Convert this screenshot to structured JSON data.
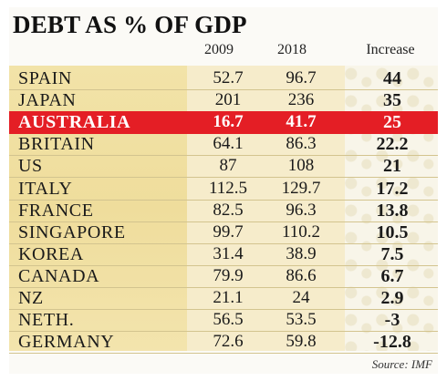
{
  "chart_data": {
    "type": "table",
    "title": "DEBT AS % OF GDP",
    "columns": [
      "2009",
      "2018",
      "Increase"
    ],
    "rows": [
      {
        "country": "SPAIN",
        "y2009": "52.7",
        "y2018": "96.7",
        "increase": "44"
      },
      {
        "country": "JAPAN",
        "y2009": "201",
        "y2018": "236",
        "increase": "35"
      },
      {
        "country": "AUSTRALIA",
        "y2009": "16.7",
        "y2018": "41.7",
        "increase": "25"
      },
      {
        "country": "BRITAIN",
        "y2009": "64.1",
        "y2018": "86.3",
        "increase": "22.2"
      },
      {
        "country": "US",
        "y2009": "87",
        "y2018": "108",
        "increase": "21"
      },
      {
        "country": "ITALY",
        "y2009": "112.5",
        "y2018": "129.7",
        "increase": "17.2"
      },
      {
        "country": "FRANCE",
        "y2009": "82.5",
        "y2018": "96.3",
        "increase": "13.8"
      },
      {
        "country": "SINGAPORE",
        "y2009": "99.7",
        "y2018": "110.2",
        "increase": "10.5"
      },
      {
        "country": "KOREA",
        "y2009": "31.4",
        "y2018": "38.9",
        "increase": "7.5"
      },
      {
        "country": "CANADA",
        "y2009": "79.9",
        "y2018": "86.6",
        "increase": "6.7"
      },
      {
        "country": "NZ",
        "y2009": "21.1",
        "y2018": "24",
        "increase": "2.9"
      },
      {
        "country": "NETH.",
        "y2009": "56.5",
        "y2018": "53.5",
        "increase": "-3"
      },
      {
        "country": "GERMANY",
        "y2009": "72.6",
        "y2018": "59.8",
        "increase": "-12.8"
      }
    ],
    "highlight_row": "AUSTRALIA",
    "highlight_color": "#e41e25",
    "band_color": "#f0df9f",
    "source": "Source: IMF"
  }
}
